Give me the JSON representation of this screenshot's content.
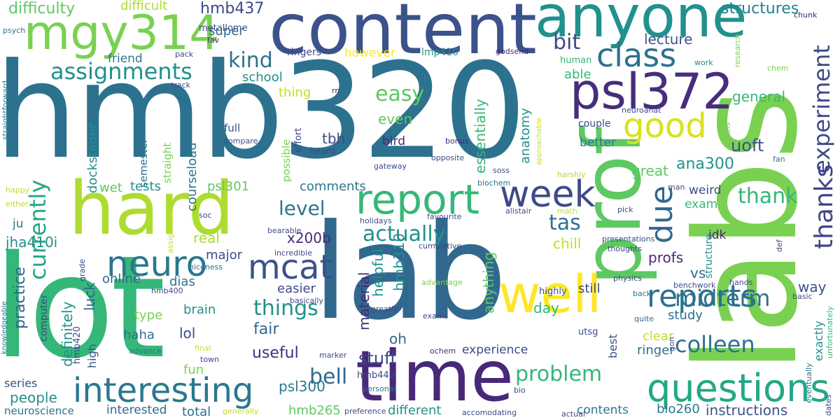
{
  "colors": {
    "c1": "#3b528b",
    "c2": "#2c728e",
    "c3": "#21918c",
    "c4": "#28ae80",
    "c5": "#5ec962",
    "c6": "#addc30",
    "c7": "#fde725",
    "c8": "#440154",
    "c9": "#482878"
  },
  "words": [
    {
      "text": "hmb320"
    },
    {
      "text": "lot"
    },
    {
      "text": "labs"
    },
    {
      "text": "lab"
    },
    {
      "text": "content"
    },
    {
      "text": "hard"
    },
    {
      "text": "time"
    },
    {
      "text": "prof"
    },
    {
      "text": "anyone"
    },
    {
      "text": "mgy314"
    },
    {
      "text": "psl372"
    },
    {
      "text": "well"
    },
    {
      "text": "report"
    },
    {
      "text": "questions"
    },
    {
      "text": "interesting"
    },
    {
      "text": "week"
    },
    {
      "text": "class"
    },
    {
      "text": "neuro"
    },
    {
      "text": "mcat"
    },
    {
      "text": "reports"
    },
    {
      "text": "good"
    },
    {
      "text": "assignments"
    },
    {
      "text": "due"
    },
    {
      "text": "thanks"
    },
    {
      "text": "experiment"
    },
    {
      "text": "currently"
    },
    {
      "text": "colleen"
    },
    {
      "text": "midterm"
    },
    {
      "text": "things"
    },
    {
      "text": "actually"
    },
    {
      "text": "problem"
    },
    {
      "text": "easy"
    },
    {
      "text": "kind"
    },
    {
      "text": "bit"
    },
    {
      "text": "thank"
    },
    {
      "text": "level"
    },
    {
      "text": "tas"
    },
    {
      "text": "bell"
    },
    {
      "text": "uoft"
    },
    {
      "text": "ana300"
    },
    {
      "text": "difficulty"
    },
    {
      "text": "difficult"
    },
    {
      "text": "hmb437"
    },
    {
      "text": "structures"
    },
    {
      "text": "chunk"
    },
    {
      "text": "psych"
    },
    {
      "text": "metallome"
    },
    {
      "text": "fav"
    },
    {
      "text": "friend"
    },
    {
      "text": "super"
    },
    {
      "text": "lecture"
    },
    {
      "text": "research"
    },
    {
      "text": "pack"
    },
    {
      "text": "ringers"
    },
    {
      "text": "however"
    },
    {
      "text": "lmp410"
    },
    {
      "text": "godsend"
    },
    {
      "text": "work"
    },
    {
      "text": "school"
    },
    {
      "text": "able"
    },
    {
      "text": "human"
    },
    {
      "text": "chem"
    },
    {
      "text": "straightforward"
    },
    {
      "text": "track"
    },
    {
      "text": "thing"
    },
    {
      "text": "rn"
    },
    {
      "text": "general"
    },
    {
      "text": "neuroanat"
    },
    {
      "text": "dockstader"
    },
    {
      "text": "semester"
    },
    {
      "text": "straight"
    },
    {
      "text": "courseload"
    },
    {
      "text": "tbh"
    },
    {
      "text": "even"
    },
    {
      "text": "essentially"
    },
    {
      "text": "anatomy"
    },
    {
      "text": "approachable"
    },
    {
      "text": "couple"
    },
    {
      "text": "skills"
    },
    {
      "text": "full"
    },
    {
      "text": "compare"
    },
    {
      "text": "effort"
    },
    {
      "text": "possible"
    },
    {
      "text": "heard"
    },
    {
      "text": "bird"
    },
    {
      "text": "bonus"
    },
    {
      "text": "better"
    },
    {
      "text": "gateway"
    },
    {
      "text": "opposite"
    },
    {
      "text": "soss"
    },
    {
      "text": "fan"
    },
    {
      "text": "great"
    },
    {
      "text": "tests"
    },
    {
      "text": "wet"
    },
    {
      "text": "psl301"
    },
    {
      "text": "comments"
    },
    {
      "text": "biochem"
    },
    {
      "text": "harshly"
    },
    {
      "text": "man"
    },
    {
      "text": "happy"
    },
    {
      "text": "either"
    },
    {
      "text": "ju"
    },
    {
      "text": "soc"
    },
    {
      "text": "weird"
    },
    {
      "text": "exam"
    },
    {
      "text": "pick"
    },
    {
      "text": "alistair"
    },
    {
      "text": "math"
    },
    {
      "text": "favourite"
    },
    {
      "text": "holidays"
    },
    {
      "text": "idk"
    },
    {
      "text": "assignment"
    },
    {
      "text": "bearable"
    },
    {
      "text": "jha410i"
    },
    {
      "text": "real"
    },
    {
      "text": "x200b"
    },
    {
      "text": "hmb310"
    },
    {
      "text": "helpful"
    },
    {
      "text": "material"
    },
    {
      "text": "anything"
    },
    {
      "text": "chill"
    },
    {
      "text": "presentations"
    },
    {
      "text": "thoughts"
    },
    {
      "text": "def"
    },
    {
      "text": "grade"
    },
    {
      "text": "niceness"
    },
    {
      "text": "major"
    },
    {
      "text": "incredible"
    },
    {
      "text": "cumulative"
    },
    {
      "text": "profs"
    },
    {
      "text": "physics"
    },
    {
      "text": "structure"
    },
    {
      "text": "vs"
    },
    {
      "text": "way"
    },
    {
      "text": "online"
    },
    {
      "text": "dias"
    },
    {
      "text": "practice"
    },
    {
      "text": "luck"
    },
    {
      "text": "knowledgeable"
    },
    {
      "text": "hmb400"
    },
    {
      "text": "basically"
    },
    {
      "text": "easier"
    },
    {
      "text": "advantage"
    },
    {
      "text": "highly"
    },
    {
      "text": "benchwork"
    },
    {
      "text": "hands"
    },
    {
      "text": "back"
    },
    {
      "text": "basic"
    },
    {
      "text": "still"
    },
    {
      "text": "unfortunately"
    },
    {
      "text": "definitely"
    },
    {
      "text": "computer"
    },
    {
      "text": "brain"
    },
    {
      "text": "greatly"
    },
    {
      "text": "day"
    },
    {
      "text": "study"
    },
    {
      "text": "exactly"
    },
    {
      "text": "lol"
    },
    {
      "text": "type"
    },
    {
      "text": "haha"
    },
    {
      "text": "fair"
    },
    {
      "text": "high"
    },
    {
      "text": "hmb420"
    },
    {
      "text": "oh"
    },
    {
      "text": "exams"
    },
    {
      "text": "quite"
    },
    {
      "text": "utsg"
    },
    {
      "text": "advance"
    },
    {
      "text": "final"
    },
    {
      "text": "clear"
    },
    {
      "text": "best"
    },
    {
      "text": "gon"
    },
    {
      "text": "experience"
    },
    {
      "text": "town"
    },
    {
      "text": "useful"
    },
    {
      "text": "marker"
    },
    {
      "text": "ochem"
    },
    {
      "text": "stuff"
    },
    {
      "text": "ringer"
    },
    {
      "text": "fun"
    },
    {
      "text": "eventually"
    },
    {
      "text": "psl300"
    },
    {
      "text": "series"
    },
    {
      "text": "people"
    },
    {
      "text": "hmb440"
    },
    {
      "text": "personal"
    },
    {
      "text": "bio"
    },
    {
      "text": "dates"
    },
    {
      "text": "neuroscience"
    },
    {
      "text": "interested"
    },
    {
      "text": "generally"
    },
    {
      "text": "contents"
    },
    {
      "text": "bio260"
    },
    {
      "text": "instructions"
    },
    {
      "text": "total"
    },
    {
      "text": "hmb265"
    },
    {
      "text": "preference"
    },
    {
      "text": "different"
    },
    {
      "text": "accomodating"
    },
    {
      "text": "actual"
    }
  ]
}
